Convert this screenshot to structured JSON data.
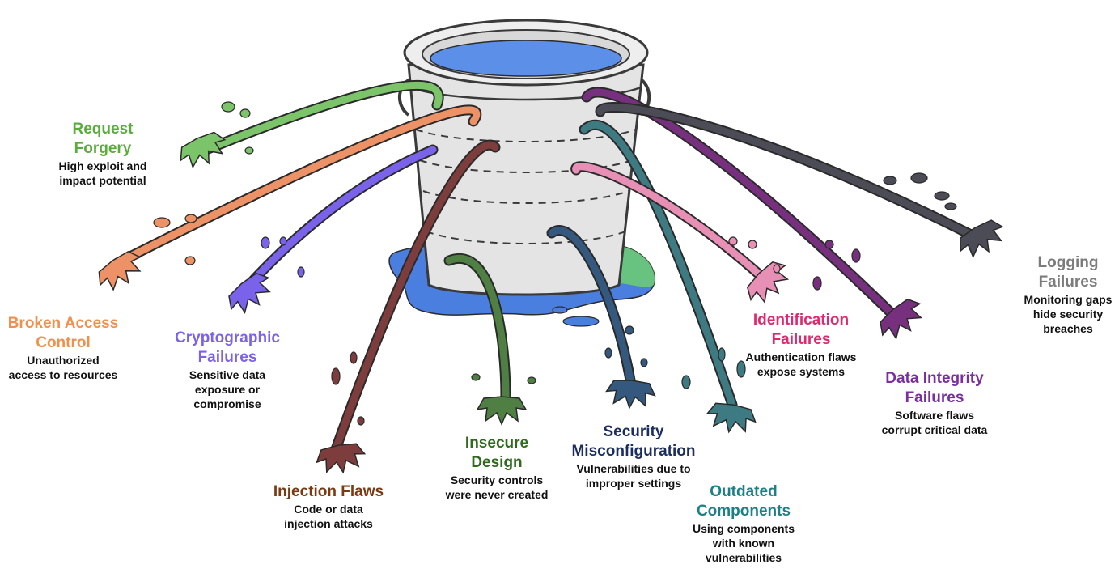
{
  "colors": {
    "bucket_body": "#e4e4e4",
    "bucket_outline": "#3a3a3a",
    "water": "#5b8fe8",
    "puddle_blue": "#4a7fe0",
    "puddle_green": "#6fcf6f"
  },
  "categories": [
    {
      "key": "request_forgery",
      "title": "Request\nForgery",
      "description": "High exploit and\nimpact potential",
      "color": "#5aac3c",
      "stream_color": "#7cc46a"
    },
    {
      "key": "broken_access_control",
      "title": "Broken Access\nControl",
      "description": "Unauthorized\naccess to resources",
      "color": "#f0904e",
      "stream_color": "#ec9266"
    },
    {
      "key": "cryptographic_failures",
      "title": "Cryptographic\nFailures",
      "description": "Sensitive data\nexposure or\ncompromise",
      "color": "#7b62e6",
      "stream_color": "#7a62ea"
    },
    {
      "key": "injection_flaws",
      "title": "Injection Flaws",
      "description": "Code or data\ninjection attacks",
      "color": "#7a3b14",
      "stream_color": "#7e3d3d"
    },
    {
      "key": "insecure_design",
      "title": "Insecure\nDesign",
      "description": "Security controls\nwere never created",
      "color": "#2f6a1e",
      "stream_color": "#4f7f43"
    },
    {
      "key": "security_misconfiguration",
      "title": "Security\nMisconfiguration",
      "description": "Vulnerabilities due to\nimproper settings",
      "color": "#1c2d60",
      "stream_color": "#34587e"
    },
    {
      "key": "outdated_components",
      "title": "Outdated\nComponents",
      "description": "Using components\nwith known\nvulnerabilities",
      "color": "#1e7f86",
      "stream_color": "#3d7a82"
    },
    {
      "key": "identification_failures",
      "title": "Identification\nFailures",
      "description": "Authentication flaws\nexpose systems",
      "color": "#e0286e",
      "stream_color": "#e78fb4"
    },
    {
      "key": "data_integrity_failures",
      "title": "Data Integrity\nFailures",
      "description": "Software flaws\ncorrupt critical data",
      "color": "#7a2ea0",
      "stream_color": "#76307e"
    },
    {
      "key": "logging_failures",
      "title": "Logging\nFailures",
      "description": "Monitoring gaps\nhide security\nbreaches",
      "color": "#7c7c7c",
      "stream_color": "#4c4c56"
    }
  ]
}
